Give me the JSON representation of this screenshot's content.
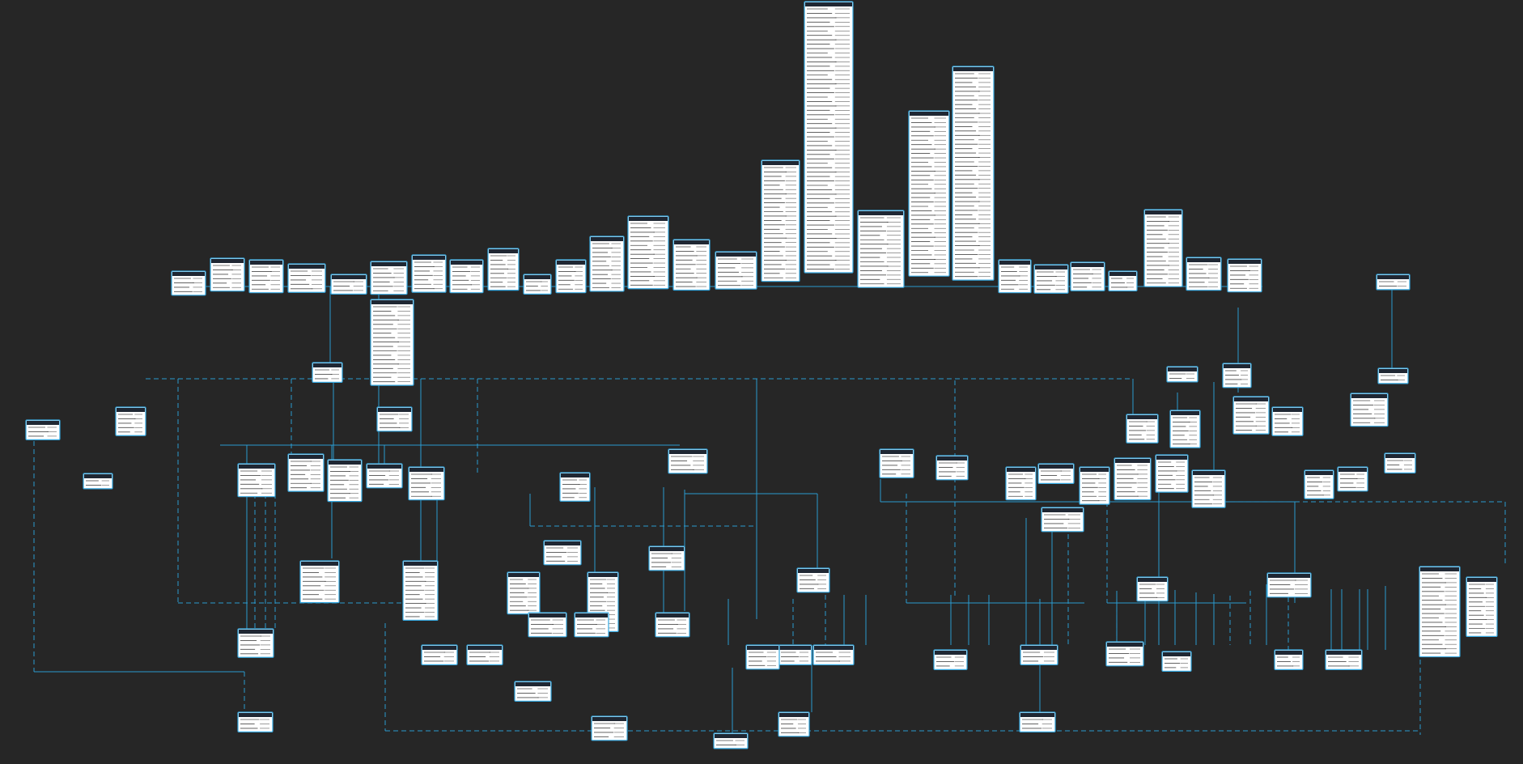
{
  "diagram": {
    "theme": {
      "background": "#262626",
      "table_fill": "#ffffff",
      "table_border": "#35a8e0",
      "header_fill": "#1f2733",
      "connector": "#2a9fd6",
      "dashed_connector": "#2a9fd6",
      "text": "#111111"
    },
    "note": "",
    "entities": [
      {
        "id": "t01",
        "rows": 4
      },
      {
        "id": "t02",
        "rows": 6
      },
      {
        "id": "t03",
        "rows": 6
      },
      {
        "id": "t04",
        "rows": 5
      },
      {
        "id": "t05",
        "rows": 3
      },
      {
        "id": "t06",
        "rows": 6
      },
      {
        "id": "t07",
        "rows": 7
      },
      {
        "id": "t08",
        "rows": 6
      },
      {
        "id": "t09",
        "rows": 8
      },
      {
        "id": "t10",
        "rows": 3
      },
      {
        "id": "t11",
        "rows": 6
      },
      {
        "id": "t12",
        "rows": 11
      },
      {
        "id": "t13",
        "rows": 15
      },
      {
        "id": "t14",
        "rows": 10
      },
      {
        "id": "t15",
        "rows": 7
      },
      {
        "id": "t16",
        "rows": 26
      },
      {
        "id": "t17",
        "rows": 60
      },
      {
        "id": "t18",
        "rows": 16
      },
      {
        "id": "t19",
        "rows": 36
      },
      {
        "id": "t20",
        "rows": 47
      },
      {
        "id": "t21",
        "rows": 6
      },
      {
        "id": "t22",
        "rows": 5
      },
      {
        "id": "t23",
        "rows": 5
      },
      {
        "id": "t24",
        "rows": 3
      },
      {
        "id": "t25",
        "rows": 16
      },
      {
        "id": "t26",
        "rows": 6
      },
      {
        "id": "t27",
        "rows": 6
      },
      {
        "id": "t28",
        "rows": 2
      },
      {
        "id": "t29",
        "rows": 18
      },
      {
        "id": "t30",
        "rows": 3
      },
      {
        "id": "t31",
        "rows": 2
      },
      {
        "id": "t32",
        "rows": 4
      },
      {
        "id": "t33",
        "rows": 2
      },
      {
        "id": "t34",
        "rows": 3
      },
      {
        "id": "t35",
        "rows": 5
      },
      {
        "id": "t36",
        "rows": 2
      },
      {
        "id": "t37",
        "rows": 4
      },
      {
        "id": "t38",
        "rows": 5
      },
      {
        "id": "t39",
        "rows": 7
      },
      {
        "id": "t40",
        "rows": 7
      },
      {
        "id": "t41",
        "rows": 5
      },
      {
        "id": "t42",
        "rows": 6
      },
      {
        "id": "t43",
        "rows": 6
      },
      {
        "id": "t44",
        "rows": 7
      },
      {
        "id": "t45",
        "rows": 8
      },
      {
        "id": "t46",
        "rows": 4
      },
      {
        "id": "t47",
        "rows": 6
      },
      {
        "id": "t48",
        "rows": 5
      },
      {
        "id": "t49",
        "rows": 4
      },
      {
        "id": "t50",
        "rows": 5
      },
      {
        "id": "t51",
        "rows": 4
      },
      {
        "id": "t52",
        "rows": 6
      },
      {
        "id": "t53",
        "rows": 3
      },
      {
        "id": "t54",
        "rows": 7
      },
      {
        "id": "t55",
        "rows": 8
      },
      {
        "id": "t56",
        "rows": 7
      },
      {
        "id": "t57",
        "rows": 7
      },
      {
        "id": "t58",
        "rows": 5
      },
      {
        "id": "t59",
        "rows": 4
      },
      {
        "id": "t60",
        "rows": 3
      },
      {
        "id": "t61",
        "rows": 4
      },
      {
        "id": "t62",
        "rows": 8
      },
      {
        "id": "t63",
        "rows": 12
      },
      {
        "id": "t64",
        "rows": 4
      },
      {
        "id": "t65",
        "rows": 8
      },
      {
        "id": "t66",
        "rows": 12
      },
      {
        "id": "t67",
        "rows": 4
      },
      {
        "id": "t68",
        "rows": 4
      },
      {
        "id": "t69",
        "rows": 4
      },
      {
        "id": "t70",
        "rows": 4
      },
      {
        "id": "t71",
        "rows": 19
      },
      {
        "id": "t72",
        "rows": 12
      },
      {
        "id": "t73",
        "rows": 4
      },
      {
        "id": "t74",
        "rows": 4
      },
      {
        "id": "t75",
        "rows": 4
      },
      {
        "id": "t76",
        "rows": 3
      },
      {
        "id": "t77",
        "rows": 3
      },
      {
        "id": "t78",
        "rows": 3
      },
      {
        "id": "t79",
        "rows": 5
      },
      {
        "id": "t80",
        "rows": 3
      },
      {
        "id": "t81",
        "rows": 4
      },
      {
        "id": "t82",
        "rows": 4
      },
      {
        "id": "t83",
        "rows": 3
      },
      {
        "id": "t84",
        "rows": 4
      },
      {
        "id": "t85",
        "rows": 3
      },
      {
        "id": "t86",
        "rows": 2
      },
      {
        "id": "t87",
        "rows": 3
      },
      {
        "id": "t88",
        "rows": 3
      },
      {
        "id": "t89",
        "rows": 4
      },
      {
        "id": "t90",
        "rows": 3
      },
      {
        "id": "t91",
        "rows": 3
      },
      {
        "id": "t92",
        "rows": 3
      },
      {
        "id": "t93",
        "rows": 3
      }
    ]
  }
}
